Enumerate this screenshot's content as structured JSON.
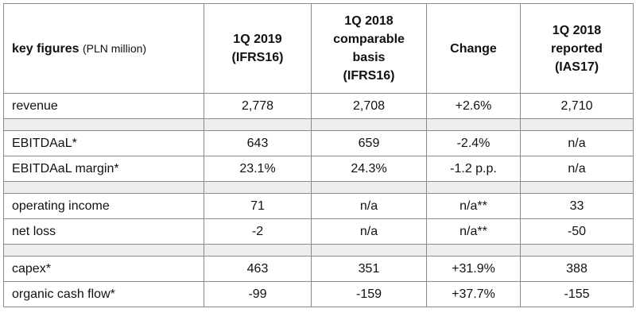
{
  "header": {
    "key_figures_bold": "key figures",
    "key_figures_unit": "(PLN million)",
    "col1": [
      "1Q 2019",
      "(IFRS16)"
    ],
    "col2": [
      "1Q 2018",
      "comparable",
      "basis",
      "(IFRS16)"
    ],
    "col3": [
      "Change"
    ],
    "col4": [
      "1Q 2018",
      "reported",
      "(IAS17)"
    ]
  },
  "rows": [
    {
      "label": "revenue",
      "q2019": "2,778",
      "q2018c": "2,708",
      "change": "+2.6%",
      "q2018r": "2,710"
    },
    {
      "label": "EBITDAaL*",
      "q2019": "643",
      "q2018c": "659",
      "change": "-2.4%",
      "q2018r": "n/a"
    },
    {
      "label": "EBITDAaL margin*",
      "q2019": "23.1%",
      "q2018c": "24.3%",
      "change": "-1.2 p.p.",
      "q2018r": "n/a"
    },
    {
      "label": "operating income",
      "q2019": "71",
      "q2018c": "n/a",
      "change": "n/a**",
      "q2018r": "33"
    },
    {
      "label": "net loss",
      "q2019": "-2",
      "q2018c": "n/a",
      "change": "n/a**",
      "q2018r": "-50"
    },
    {
      "label": "capex*",
      "q2019": "463",
      "q2018c": "351",
      "change": "+31.9%",
      "q2018r": "388"
    },
    {
      "label": "organic cash flow*",
      "q2019": "-99",
      "q2018c": "-159",
      "change": "+37.7%",
      "q2018r": "-155"
    }
  ],
  "colors": {
    "spacer_fill": "#eeeeee",
    "border": "#8a8a8a"
  }
}
